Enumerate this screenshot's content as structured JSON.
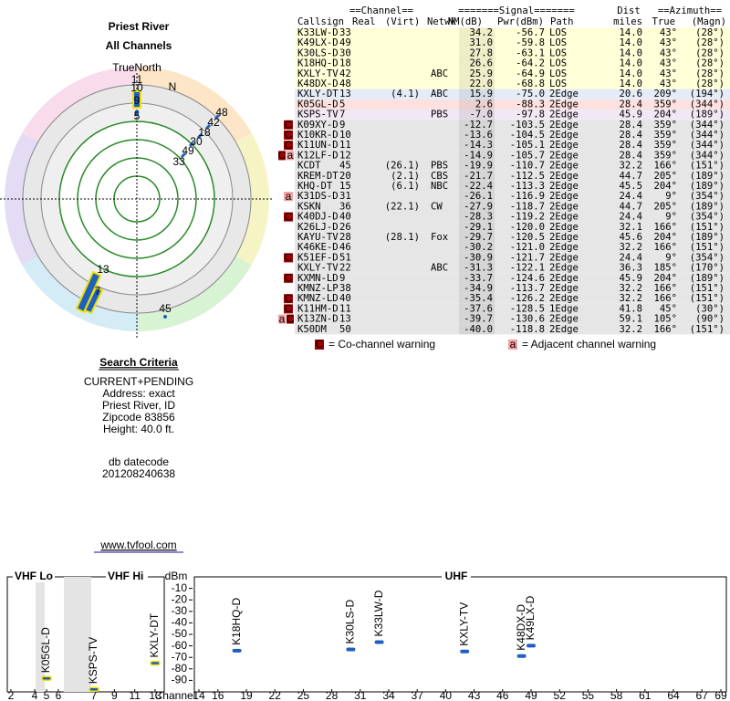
{
  "header": {
    "title": "Priest River",
    "subtitle": "All Channels"
  },
  "polar": {
    "north_label": "TrueNorth",
    "n_marker": "N",
    "labels": [
      "11",
      "10",
      "9",
      "5",
      "48",
      "42",
      "18",
      "30",
      "49",
      "33",
      "13",
      "7",
      "45"
    ]
  },
  "search": {
    "title": "Search Criteria",
    "lines": [
      "CURRENT+PENDING",
      "Address: exact",
      "Priest River, ID",
      "Zipcode 83856",
      "Height: 40.0 ft."
    ],
    "datecode_label": "db datecode",
    "datecode": "201208240638",
    "link": "www.tvfool.com"
  },
  "table": {
    "groups": [
      "==Channel==",
      "=======Signal=======",
      "Dist",
      "==Azimuth=="
    ],
    "columns": [
      "Callsign",
      "Real",
      "(Virt)",
      "Netwk",
      "NM(dB)",
      "Pwr(dBm)",
      "Path",
      "miles",
      "True",
      "(Magn)"
    ],
    "rows": [
      {
        "callsign": "K33LW-D",
        "real": "33",
        "nm": "34.2",
        "pwr": "-56.7",
        "path": "LOS",
        "dist": "14.0",
        "true": "43°",
        "magn": "(28°)",
        "bg": "#ffffd8",
        "color": "#1f5fbf",
        "az_color": "#d08000"
      },
      {
        "callsign": "K49LX-D",
        "real": "49",
        "nm": "31.0",
        "pwr": "-59.8",
        "path": "LOS",
        "dist": "14.0",
        "true": "43°",
        "magn": "(28°)",
        "bg": "#ffffd8",
        "color": "#1f5fbf",
        "az_color": "#d08000"
      },
      {
        "callsign": "K30LS-D",
        "real": "30",
        "nm": "27.8",
        "pwr": "-63.1",
        "path": "LOS",
        "dist": "14.0",
        "true": "43°",
        "magn": "(28°)",
        "bg": "#ffffd8",
        "color": "#1f5fbf",
        "az_color": "#d08000"
      },
      {
        "callsign": "K18HQ-D",
        "real": "18",
        "nm": "26.6",
        "pwr": "-64.2",
        "path": "LOS",
        "dist": "14.0",
        "true": "43°",
        "magn": "(28°)",
        "bg": "#ffffd8",
        "color": "#1f5fbf",
        "az_color": "#d08000"
      },
      {
        "callsign": "KXLY-TV",
        "real": "42",
        "netwk": "ABC",
        "nm": "25.9",
        "pwr": "-64.9",
        "path": "LOS",
        "dist": "14.0",
        "true": "43°",
        "magn": "(28°)",
        "bg": "#ffffd8",
        "color": "#1f5fbf",
        "az_color": "#d08000"
      },
      {
        "callsign": "K48DX-D",
        "real": "48",
        "nm": "22.0",
        "pwr": "-68.8",
        "path": "LOS",
        "dist": "14.0",
        "true": "43°",
        "magn": "(28°)",
        "bg": "#ffffd8",
        "color": "#1f5fbf",
        "az_color": "#d08000"
      },
      {
        "callsign": "KXLY-DT",
        "real": "13",
        "virt": "(4.1)",
        "netwk": "ABC",
        "nm": "15.9",
        "pwr": "-75.0",
        "path": "2Edge",
        "dist": "20.6",
        "true": "209°",
        "magn": "(194°)",
        "bg": "#e4ecf8",
        "color": "#1f5fbf",
        "az_color": "#1f5fbf"
      },
      {
        "callsign": "K05GL-D",
        "real": "5",
        "nm": "2.6",
        "pwr": "-88.3",
        "path": "2Edge",
        "dist": "28.4",
        "true": "359°",
        "magn": "(344°)",
        "bg": "#fde0e0",
        "color": "#1f5fbf",
        "az_color": "#c00000"
      },
      {
        "callsign": "KSPS-TV",
        "real": "7",
        "netwk": "PBS",
        "nm": "-7.0",
        "pwr": "-97.8",
        "path": "2Edge",
        "dist": "45.9",
        "true": "204°",
        "magn": "(189°)",
        "bg": "#f0e8f4",
        "color": "#1f5fbf",
        "az_color": "#1f5fbf"
      },
      {
        "callsign": "K09XY-D",
        "real": "9",
        "nm": "-12.7",
        "pwr": "-103.5",
        "path": "2Edge",
        "dist": "28.4",
        "true": "359°",
        "magn": "(344°)",
        "flags": [
          "C"
        ],
        "bg": "#e6e6e6",
        "color": "#1f5fbf",
        "az_color": "#c00000"
      },
      {
        "callsign": "K10KR-D",
        "real": "10",
        "nm": "-13.6",
        "pwr": "-104.5",
        "path": "2Edge",
        "dist": "28.4",
        "true": "359°",
        "magn": "(344°)",
        "flags": [
          "C"
        ],
        "bg": "#e6e6e6",
        "color": "#1f5fbf",
        "az_color": "#c00000"
      },
      {
        "callsign": "K11UN-D",
        "real": "11",
        "nm": "-14.3",
        "pwr": "-105.1",
        "path": "2Edge",
        "dist": "28.4",
        "true": "359°",
        "magn": "(344°)",
        "flags": [
          "C"
        ],
        "bg": "#e6e6e6",
        "color": "#1f5fbf",
        "az_color": "#c00000"
      },
      {
        "callsign": "K12LF-D",
        "real": "12",
        "nm": "-14.9",
        "pwr": "-105.7",
        "path": "2Edge",
        "dist": "28.4",
        "true": "359°",
        "magn": "(344°)",
        "flags": [
          "C",
          "a"
        ],
        "bg": "#e6e6e6",
        "color": "#1f5fbf",
        "az_color": "#c00000"
      },
      {
        "callsign": "KCDT",
        "real": "45",
        "virt": "(26.1)",
        "netwk": "PBS",
        "nm": "-19.9",
        "pwr": "-110.7",
        "path": "2Edge",
        "dist": "32.2",
        "true": "166°",
        "magn": "(151°)",
        "bg": "#e6e6e6",
        "color": "#1f5fbf",
        "az_color": "#2a8a2a"
      },
      {
        "callsign": "KREM-DT",
        "real": "20",
        "virt": "(2.1)",
        "netwk": "CBS",
        "nm": "-21.7",
        "pwr": "-112.5",
        "path": "2Edge",
        "dist": "44.7",
        "true": "205°",
        "magn": "(189°)",
        "bg": "#e6e6e6",
        "color": "#1f5fbf",
        "az_color": "#1f5fbf"
      },
      {
        "callsign": "KHQ-DT",
        "real": "15",
        "virt": "(6.1)",
        "netwk": "NBC",
        "nm": "-22.4",
        "pwr": "-113.3",
        "path": "2Edge",
        "dist": "45.5",
        "true": "204°",
        "magn": "(189°)",
        "bg": "#e6e6e6",
        "color": "#1f5fbf",
        "az_color": "#1f5fbf"
      },
      {
        "callsign": "K31DS-D",
        "real": "31",
        "nm": "-26.1",
        "pwr": "-116.9",
        "path": "2Edge",
        "dist": "24.4",
        "true": "9°",
        "magn": "(354°)",
        "flags": [
          "a"
        ],
        "bg": "#e6e6e6",
        "color": "#1f5fbf",
        "az_color": "#c00000"
      },
      {
        "callsign": "KSKN",
        "real": "36",
        "virt": "(22.1)",
        "netwk": "CW",
        "nm": "-27.9",
        "pwr": "-118.7",
        "path": "2Edge",
        "dist": "44.7",
        "true": "205°",
        "magn": "(189°)",
        "bg": "#e6e6e6",
        "color": "#1f5fbf",
        "az_color": "#1f5fbf"
      },
      {
        "callsign": "K40DJ-D",
        "real": "40",
        "nm": "-28.3",
        "pwr": "-119.2",
        "path": "2Edge",
        "dist": "24.4",
        "true": "9°",
        "magn": "(354°)",
        "flags": [
          "C"
        ],
        "bg": "#e6e6e6",
        "color": "#1f5fbf",
        "az_color": "#c00000"
      },
      {
        "callsign": "K26LJ-D",
        "real": "26",
        "nm": "-29.1",
        "pwr": "-120.0",
        "path": "2Edge",
        "dist": "32.1",
        "true": "166°",
        "magn": "(151°)",
        "bg": "#e6e6e6",
        "color": "#1f5fbf",
        "az_color": "#2a8a2a"
      },
      {
        "callsign": "KAYU-TV",
        "real": "28",
        "virt": "(28.1)",
        "netwk": "Fox",
        "nm": "-29.7",
        "pwr": "-120.5",
        "path": "2Edge",
        "dist": "45.6",
        "true": "204°",
        "magn": "(189°)",
        "bg": "#e6e6e6",
        "color": "#1f5fbf",
        "az_color": "#1f5fbf"
      },
      {
        "callsign": "K46KE-D",
        "real": "46",
        "nm": "-30.2",
        "pwr": "-121.0",
        "path": "2Edge",
        "dist": "32.2",
        "true": "166°",
        "magn": "(151°)",
        "bg": "#e6e6e6",
        "color": "#1f5fbf",
        "az_color": "#2a8a2a"
      },
      {
        "callsign": "K51EF-D",
        "real": "51",
        "nm": "-30.9",
        "pwr": "-121.7",
        "path": "2Edge",
        "dist": "24.4",
        "true": "9°",
        "magn": "(354°)",
        "flags": [
          "C"
        ],
        "bg": "#e6e6e6",
        "color": "#1f5fbf",
        "az_color": "#c00000"
      },
      {
        "callsign": "KXLY-TV",
        "real": "22",
        "netwk": "ABC",
        "nm": "-31.3",
        "pwr": "-122.1",
        "path": "2Edge",
        "dist": "36.3",
        "true": "185°",
        "magn": "(170°)",
        "bg": "#e6e6e6",
        "color": "#1f5fbf",
        "az_color": "#1f5fbf"
      },
      {
        "callsign": "KXMN-LD",
        "real": "9",
        "nm": "-33.7",
        "pwr": "-124.6",
        "path": "2Edge",
        "dist": "45.9",
        "true": "204°",
        "magn": "(189°)",
        "flags": [
          "C"
        ],
        "bg": "#e6e6e6",
        "color": "#1f5fbf",
        "az_color": "#1f5fbf"
      },
      {
        "callsign": "KMNZ-LP",
        "real": "38",
        "nm": "-34.9",
        "pwr": "-113.7",
        "path": "2Edge",
        "dist": "32.2",
        "true": "166°",
        "magn": "(151°)",
        "bg": "#e6e6e6",
        "color": "#9a20b0",
        "az_color": "#2a8a2a"
      },
      {
        "callsign": "KMNZ-LD",
        "real": "40",
        "nm": "-35.4",
        "pwr": "-126.2",
        "path": "2Edge",
        "dist": "32.2",
        "true": "166°",
        "magn": "(151°)",
        "flags": [
          "C"
        ],
        "bg": "#e6e6e6",
        "color": "#1f5fbf",
        "az_color": "#2a8a2a"
      },
      {
        "callsign": "K11HM-D",
        "real": "11",
        "nm": "-37.6",
        "pwr": "-128.5",
        "path": "1Edge",
        "dist": "41.8",
        "true": "45°",
        "magn": "(30°)",
        "flags": [
          "C"
        ],
        "bg": "#e6e6e6",
        "color": "#1f5fbf",
        "az_color": "#d08000"
      },
      {
        "callsign": "K13ZN-D",
        "real": "13",
        "nm": "-39.7",
        "pwr": "-130.6",
        "path": "2Edge",
        "dist": "59.1",
        "true": "105°",
        "magn": "(90°)",
        "flags": [
          "a",
          "C"
        ],
        "bg": "#e6e6e6",
        "color": "#1f5fbf",
        "az_color": "#2a8a2a"
      },
      {
        "callsign": "K50DM",
        "real": "50",
        "nm": "-40.0",
        "pwr": "-118.8",
        "path": "2Edge",
        "dist": "32.2",
        "true": "166°",
        "magn": "(151°)",
        "bg": "#e6e6e6",
        "color": "#9a20b0",
        "az_color": "#2a8a2a"
      }
    ],
    "legend": {
      "co_flag": "C",
      "co_text": "= Co-channel warning",
      "adj_flag": "a",
      "adj_text": "= Adjacent channel warning"
    }
  },
  "chart_data": {
    "type": "spectrum",
    "band_labels": [
      "VHF Lo",
      "VHF Hi",
      "UHF"
    ],
    "y_label": "dBm",
    "x_label": "Channel",
    "ylim": [
      -100,
      0
    ],
    "yticks": [
      -10,
      -20,
      -30,
      -40,
      -50,
      -60,
      -70,
      -80,
      -90
    ],
    "vhf_lo_xlim": [
      2,
      6
    ],
    "vhf_hi_xlim": [
      7,
      13
    ],
    "uhf_xlim": [
      14,
      69
    ],
    "vhf_xticks": [
      2,
      4,
      5,
      6,
      7,
      9,
      11,
      13
    ],
    "uhf_xticks": [
      14,
      16,
      19,
      22,
      25,
      28,
      31,
      34,
      37,
      40,
      43,
      46,
      49,
      52,
      55,
      58,
      61,
      64,
      67,
      69
    ],
    "color": "#1f5fbf",
    "stations": [
      {
        "name": "K05GL-D",
        "channel": 5,
        "dbm": -88.3
      },
      {
        "name": "KSPS-TV",
        "channel": 7,
        "dbm": -97.8
      },
      {
        "name": "KXLY-DT",
        "channel": 13,
        "dbm": -75.0
      },
      {
        "name": "K18HQ-D",
        "channel": 18,
        "dbm": -64.2
      },
      {
        "name": "K30LS-D",
        "channel": 30,
        "dbm": -63.1
      },
      {
        "name": "K33LW-D",
        "channel": 33,
        "dbm": -56.7
      },
      {
        "name": "KXLY-TV",
        "channel": 42,
        "dbm": -64.9
      },
      {
        "name": "K48DX-D",
        "channel": 48,
        "dbm": -68.8
      },
      {
        "name": "K49LX-D",
        "channel": 49,
        "dbm": -59.8
      }
    ]
  }
}
